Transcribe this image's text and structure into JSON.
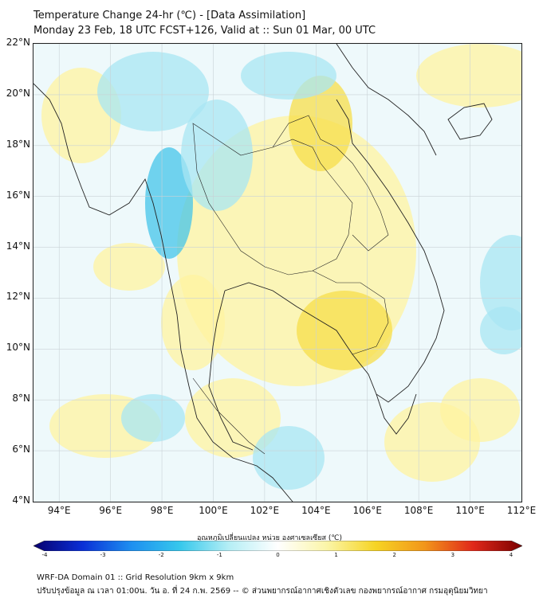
{
  "title": {
    "line1": "Temperature Change 24-hr (℃) - [Data Assimilation]",
    "line2": "Monday 23 Feb, 18 UTC FCST+126, Valid at :: Sun 01 Mar, 00 UTC"
  },
  "map": {
    "lat_range": [
      4,
      22
    ],
    "lon_range": [
      93,
      112
    ],
    "lat_labels": [
      "22°N",
      "20°N",
      "18°N",
      "16°N",
      "14°N",
      "12°N",
      "10°N",
      "8°N",
      "6°N",
      "4°N"
    ],
    "lon_labels": [
      "94°E",
      "96°E",
      "98°E",
      "100°E",
      "102°E",
      "104°E",
      "106°E",
      "108°E",
      "110°E",
      "112°E"
    ],
    "field_colors": {
      "background": "#eef9fb",
      "warm": "#fff3a0",
      "warm_strong": "#f7dd4a",
      "cool": "#a8e6f3",
      "cool_strong": "#44c4ea"
    }
  },
  "colorbar": {
    "label": "อุณหภูมิเปลี่ยนแปลง หน่วย องศาเซลเซียส (℃)",
    "range": [
      -4,
      4
    ],
    "ticks": [
      "-4",
      "-3",
      "-2",
      "-1",
      "0",
      "1",
      "2",
      "3",
      "4"
    ],
    "colors": [
      "#08006e",
      "#0a2fd6",
      "#1d8ff0",
      "#36c8ec",
      "#b5eef5",
      "#ffffff",
      "#fbf5a8",
      "#f6d424",
      "#f2961a",
      "#e0281a",
      "#7a0000"
    ]
  },
  "footer": {
    "line1": "WRF-DA Domain 01 :: Grid Resolution 9km x 9km",
    "line2": "ปรับปรุงข้อมูล ณ เวลา 01:00น. วัน อ. ที่ 24 ก.พ. 2569 -- © ส่วนพยากรณ์อากาศเชิงตัวเลข กองพยากรณ์อากาศ กรมอุตุนิยมวิทยา"
  }
}
